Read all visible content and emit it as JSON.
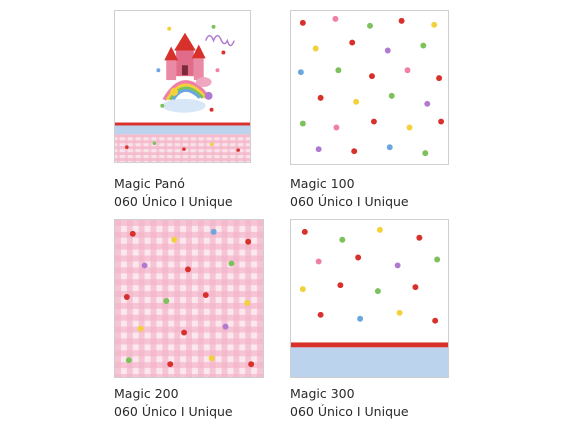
{
  "products": [
    {
      "name": "Magic Panó",
      "code_line": "060 Único I Unique",
      "pattern": "mural-panel",
      "colors": {
        "band_blue": "#bcd3ee",
        "band_red": "#d8312c",
        "gingham": "#f4b6c9"
      }
    },
    {
      "name": "Magic 100",
      "code_line": "060 Único I Unique",
      "pattern": "white-scattered-motifs"
    },
    {
      "name": "Magic 200",
      "code_line": "060 Único I Unique",
      "pattern": "pink-gingham-motifs"
    },
    {
      "name": "Magic 300",
      "code_line": "060 Único I Unique",
      "pattern": "white-motifs-with-border",
      "colors": {
        "band_blue": "#bcd3ee",
        "band_red": "#d8312c"
      }
    }
  ],
  "motif_colors": [
    "#d8312c",
    "#7cc15a",
    "#f2d13a",
    "#b07ad1",
    "#6aa6e0",
    "#ef7fa6"
  ]
}
